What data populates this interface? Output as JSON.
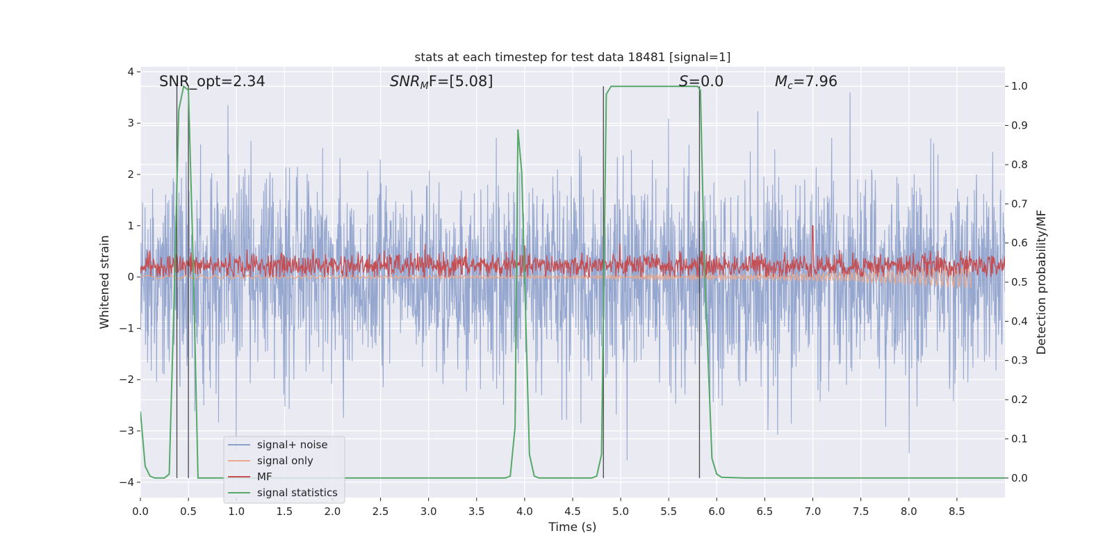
{
  "chart_data": {
    "type": "line",
    "title": "stats at each timestep for test data 18481 [signal=1]",
    "xlabel": "Time (s)",
    "ylabel_left": "Whitened strain",
    "ylabel_right": "Detection probability/MF",
    "xlim": [
      0.0,
      9.0
    ],
    "ylim_left": [
      -4.3,
      4.1
    ],
    "ylim_right": [
      -0.05,
      1.05
    ],
    "x_ticks": [
      "0.0",
      "0.5",
      "1.0",
      "1.5",
      "2.0",
      "2.5",
      "3.0",
      "3.5",
      "4.0",
      "4.5",
      "5.0",
      "5.5",
      "6.0",
      "6.5",
      "7.0",
      "7.5",
      "8.0",
      "8.5"
    ],
    "y_left_ticks": [
      "4",
      "3",
      "2",
      "1",
      "0",
      "−1",
      "−2",
      "−3",
      "−4"
    ],
    "y_right_ticks": [
      "1.0",
      "0.9",
      "0.8",
      "0.7",
      "0.6",
      "0.5",
      "0.4",
      "0.3",
      "0.2",
      "0.1",
      "0.0"
    ],
    "grid": true,
    "legend_position": "lower-left",
    "legend": [
      {
        "name": "signal+ noise",
        "color": "#8da0cb"
      },
      {
        "name": "signal only",
        "color": "#e9a78b"
      },
      {
        "name": "MF",
        "color": "#c44e52"
      },
      {
        "name": "signal statistics",
        "color": "#55a868"
      }
    ],
    "annotations": {
      "snr_opt": "SNR_opt=2.34",
      "snr_mf_name": "SNR",
      "snr_mf_sub": "M",
      "snr_mf_rest": "F=[5.08]",
      "s_name": "S",
      "s_rest": "=0.0",
      "mc_name": "M",
      "mc_sub": "c",
      "mc_rest": "=7.96"
    },
    "series": [
      {
        "name": "signal statistics",
        "axis": "right",
        "x": [
          0.0,
          0.05,
          0.1,
          0.15,
          0.25,
          0.3,
          0.35,
          0.4,
          0.45,
          0.5,
          0.55,
          0.6,
          0.65,
          3.8,
          3.85,
          3.9,
          3.93,
          3.97,
          4.05,
          4.1,
          4.15,
          4.7,
          4.75,
          4.8,
          4.85,
          4.9,
          5.8,
          5.83,
          5.87,
          5.95,
          6.0,
          6.05,
          6.3,
          9.0
        ],
        "y": [
          0.17,
          0.03,
          0.005,
          0.0,
          0.0,
          0.01,
          0.45,
          0.94,
          1.0,
          0.99,
          0.55,
          0.0,
          0.0,
          0.0,
          0.005,
          0.13,
          0.89,
          0.78,
          0.06,
          0.005,
          0.0,
          0.0,
          0.005,
          0.06,
          0.98,
          1.0,
          1.0,
          0.99,
          0.55,
          0.05,
          0.01,
          0.002,
          0.0,
          0.0
        ]
      },
      {
        "name": "signal+ noise",
        "axis": "left",
        "x_range": [
          0.0,
          9.0
        ],
        "amplitude_typical": [
          -1.8,
          2.2
        ],
        "amplitude_peaks": [
          -4.0,
          3.6
        ]
      },
      {
        "name": "MF",
        "axis": "left",
        "x_range": [
          0.0,
          9.0
        ],
        "amplitude_typical": [
          0.0,
          0.6
        ],
        "peak": {
          "x": 7.0,
          "y": 1.0
        }
      },
      {
        "name": "signal only",
        "axis": "left",
        "x_range": [
          0.0,
          8.65
        ],
        "end_value": -0.2
      }
    ],
    "vertical_lines": [
      0.38,
      0.5,
      4.82,
      5.82
    ],
    "vertical_line_range": [
      0.0,
      1.0
    ]
  }
}
